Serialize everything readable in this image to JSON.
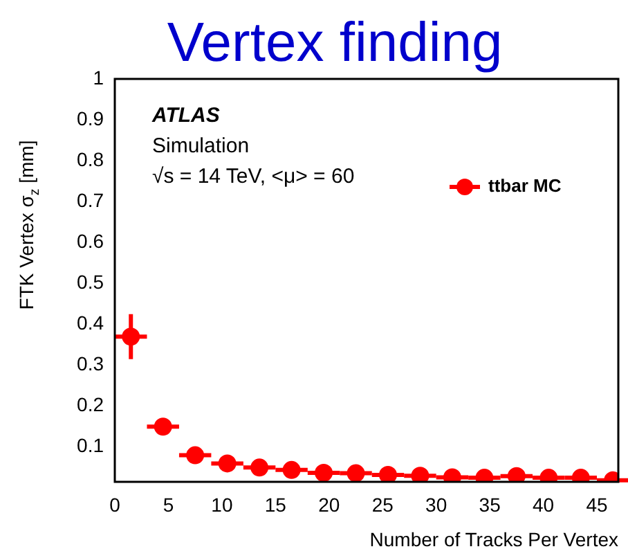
{
  "chart_data": {
    "type": "scatter",
    "title": "Vertex finding",
    "xlabel": "Number of Tracks Per Vertex",
    "ylabel": "FTK Vertex σ$_{z}$ [mm]",
    "annotations": [
      "ATLAS",
      "Simulation",
      "√s = 14 TeV, <μ> = 60"
    ],
    "x": [
      1.5,
      4.5,
      7.5,
      10.5,
      13.5,
      16.5,
      19.5,
      22.5,
      25.5,
      28.5,
      31.5,
      34.5,
      37.5,
      40.5,
      43.5,
      46.5
    ],
    "series": [
      {
        "name": "ttbar MC",
        "color": "#ff0000",
        "values": [
          0.37,
          0.15,
          0.08,
          0.06,
          0.05,
          0.044,
          0.037,
          0.036,
          0.032,
          0.03,
          0.026,
          0.025,
          0.029,
          0.025,
          0.025,
          0.019
        ],
        "errors": [
          0.055,
          null,
          null,
          null,
          null,
          null,
          null,
          null,
          null,
          null,
          null,
          null,
          null,
          null,
          null,
          null
        ],
        "xerrors": [
          1.5,
          1.5,
          1.5,
          1.5,
          1.5,
          1.5,
          1.5,
          1.5,
          1.5,
          1.5,
          1.5,
          1.5,
          1.5,
          1.5,
          1.5,
          1.5
        ]
      }
    ],
    "xlim": [
      0,
      47
    ],
    "xticks": [
      0,
      5,
      10,
      15,
      20,
      25,
      30,
      35,
      40,
      45
    ],
    "ylim": [
      0.015,
      1
    ],
    "yticks": [
      0.1,
      0.2,
      0.3,
      0.4,
      0.5,
      0.6,
      0.7,
      0.8,
      0.9,
      1
    ],
    "grid": false,
    "legend": "top right",
    "marker": "circle"
  }
}
